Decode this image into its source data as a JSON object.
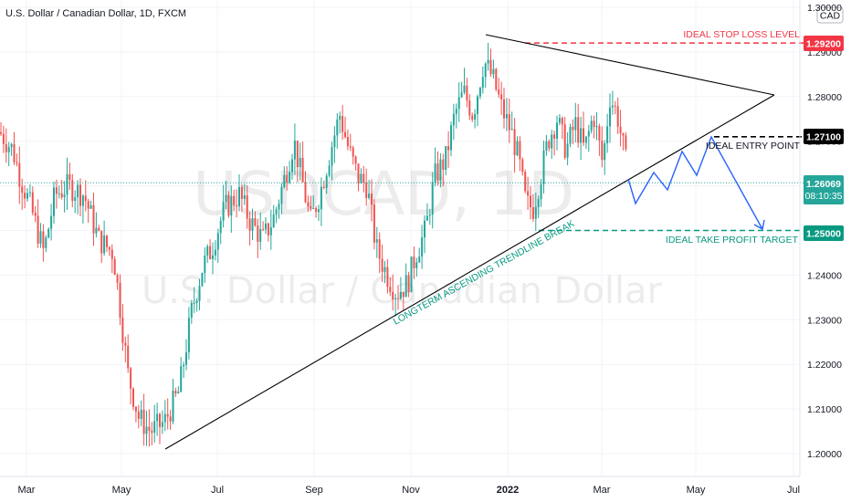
{
  "chart_data": {
    "type": "candlestick",
    "title": "U.S. Dollar / Canadian Dollar, 1D, FXCM",
    "currency_badge": "CAD",
    "watermark_symbol": "USDCAD, 1D",
    "watermark_name": "U.S. Dollar / Canadian Dollar",
    "x_labels": [
      "Mar",
      "May",
      "Jul",
      "Sep",
      "Nov",
      "2022",
      "Mar",
      "May",
      "Jul"
    ],
    "y_ticks": [
      "1.20000",
      "1.21000",
      "1.22000",
      "1.23000",
      "1.24000",
      "1.25000",
      "1.26000",
      "1.27000",
      "1.28000",
      "1.29000",
      "1.30000"
    ],
    "ylim": [
      1.1985,
      1.3005
    ],
    "x_range_months": [
      "2021-02",
      "2022-07"
    ],
    "current_price": "1.26069",
    "countdown": "08:10:35",
    "price_labels": {
      "stop_loss": "1.29200",
      "entry": "1.27100",
      "take_profit": "1.25000"
    },
    "levels": {
      "stop_loss": 1.292,
      "entry": 1.271,
      "take_profit": 1.25,
      "current": 1.26069
    },
    "annotations": {
      "stop_loss_text": "IDEAL STOP LOSS LEVEL",
      "entry_text": "IDEAL ENTRY POINT",
      "take_profit_text": "IDEAL TAKE PROFIT TARGET",
      "trendline_text": "LONGTERM ASCENDING TRENDLINE BREAK"
    },
    "colors": {
      "up": "#26a69a",
      "down": "#ef5350",
      "stop_loss": "#f23645",
      "take_profit": "#089981",
      "entry": "#000000",
      "projection": "#2962ff",
      "trendline": "#000000",
      "current_line": "#26a69a"
    },
    "legend": "none",
    "grid": true
  }
}
